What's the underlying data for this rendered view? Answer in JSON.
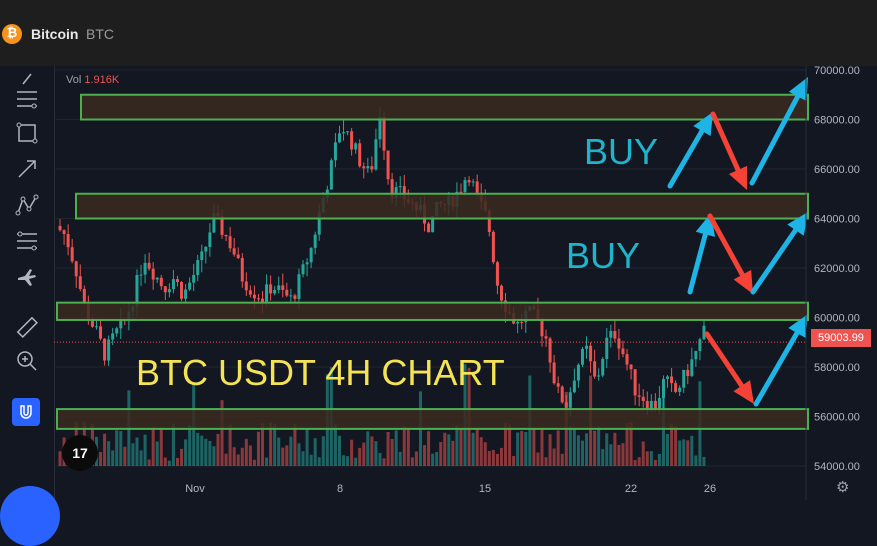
{
  "header": {
    "logo": "₿",
    "title": "Bitcoin",
    "ticker": "BTC"
  },
  "toolbar": {
    "icons": [
      "crosshair-icon",
      "trend-lines-icon",
      "rectangle-icon",
      "arrow-icon",
      "pattern-icon",
      "measure-lines-icon",
      "plane-icon",
      "ruler-icon",
      "zoom-in-icon",
      "magnet-icon"
    ]
  },
  "volume": {
    "label": "Vol",
    "value": "1.916K"
  },
  "current_price": "59003.99",
  "tv_logo": "17",
  "colors": {
    "up": "#26a69a",
    "down": "#ef5350",
    "zone_border": "#4caf50",
    "zone_fill": "#3a2a20",
    "buy_text": "#1eb5cc",
    "arrow_cyan": "#1eb5e6",
    "arrow_red": "#f44336",
    "annotation": "#f5e356"
  },
  "chart_data": {
    "type": "candlestick",
    "y_ticks": [
      "54000.00",
      "56000.00",
      "58000.00",
      "60000.00",
      "62000.00",
      "64000.00",
      "66000.00",
      "68000.00",
      "70000.00"
    ],
    "y_tick_values": [
      54000,
      56000,
      58000,
      60000,
      62000,
      64000,
      66000,
      68000,
      70000
    ],
    "ylim": [
      53500,
      70200
    ],
    "x_ticks": [
      "Nov",
      "8",
      "15",
      "22",
      "26"
    ],
    "zones": [
      {
        "low": 68000,
        "high": 69000
      },
      {
        "low": 64000,
        "high": 65000
      },
      {
        "low": 59900,
        "high": 60600
      },
      {
        "low": 55500,
        "high": 56300
      }
    ],
    "annotations": {
      "title": "BTC USDT 4H CHART",
      "buy_labels": [
        "BUY",
        "BUY"
      ]
    },
    "close_path": [
      63700,
      63300,
      62000,
      60300,
      59500,
      58500,
      59300,
      59800,
      61000,
      62500,
      61800,
      61200,
      61600,
      60900,
      61700,
      62500,
      64000,
      63500,
      62800,
      61600,
      61100,
      60800,
      61300,
      61000,
      60700,
      61700,
      62800,
      64500,
      66000,
      67800,
      67200,
      66300,
      65700,
      68300,
      65200,
      65000,
      64700,
      64300,
      63700,
      64500,
      64600,
      65100,
      65900,
      64700,
      63900,
      61300,
      60300,
      59700,
      60200,
      59900,
      59100,
      57000,
      56500,
      58000,
      58700,
      57300,
      59000,
      59400,
      58300,
      57100,
      56700,
      56400,
      57500,
      56900,
      57600,
      58400,
      59400
    ],
    "current_value": 59003.99
  }
}
